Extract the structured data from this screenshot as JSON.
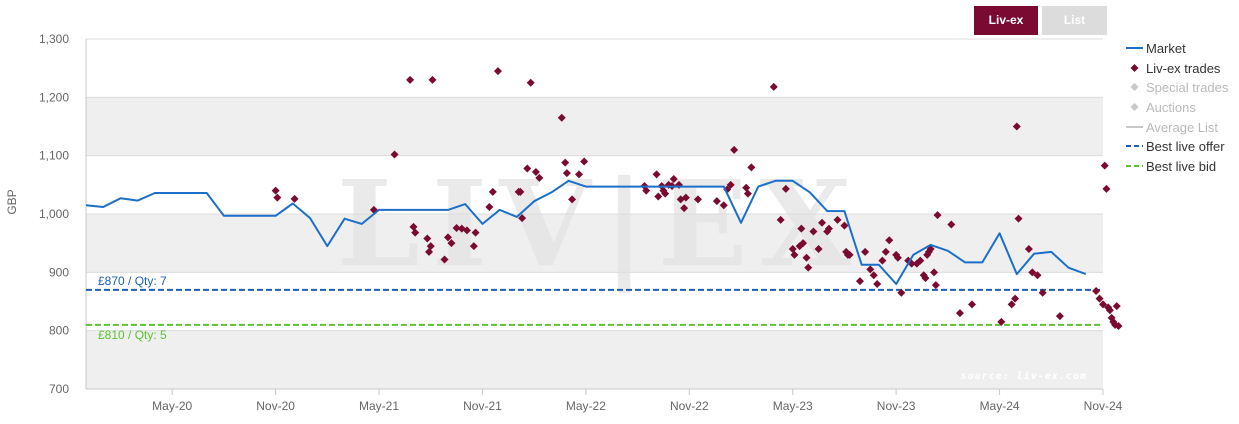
{
  "buttons": {
    "livex": "Liv-ex",
    "list": "List"
  },
  "legend": [
    {
      "name": "Market",
      "kind": "line",
      "color": "#1b6fc9",
      "muted": false
    },
    {
      "name": "Liv-ex trades",
      "kind": "diamond",
      "color": "#7b0a32",
      "muted": false
    },
    {
      "name": "Special trades",
      "kind": "diamond",
      "color": "#c8c8c8",
      "muted": true
    },
    {
      "name": "Auctions",
      "kind": "diamond",
      "color": "#c8c8c8",
      "muted": true
    },
    {
      "name": "Average List",
      "kind": "line",
      "color": "#c8c8c8",
      "muted": true
    },
    {
      "name": "Best live offer",
      "kind": "dash",
      "color": "#1a5fb4",
      "muted": false
    },
    {
      "name": "Best live bid",
      "kind": "dash",
      "color": "#5cc133",
      "muted": false
    }
  ],
  "chart_data": {
    "type": "line",
    "ylabel": "GBP",
    "ylim": [
      700,
      1300
    ],
    "yticks": [
      "1,300",
      "1,200",
      "1,100",
      "1,000",
      "900",
      "800",
      "700"
    ],
    "yticks_values": [
      1300,
      1200,
      1100,
      1000,
      900,
      800,
      700
    ],
    "xlim": [
      0,
      59
    ],
    "xticks": [
      {
        "label": "May-20",
        "x": 5
      },
      {
        "label": "Nov-20",
        "x": 11
      },
      {
        "label": "May-21",
        "x": 17
      },
      {
        "label": "Nov-21",
        "x": 23
      },
      {
        "label": "May-22",
        "x": 29
      },
      {
        "label": "Nov-22",
        "x": 35
      },
      {
        "label": "May-23",
        "x": 41
      },
      {
        "label": "Nov-23",
        "x": 47
      },
      {
        "label": "May-24",
        "x": 53
      },
      {
        "label": "Nov-24",
        "x": 59
      }
    ],
    "grid": true,
    "watermark": "LIV|EX",
    "source": "source: liv-ex.com",
    "best_offer": {
      "value": 870,
      "label": "£870 / Qty: 7",
      "color": "#1a5fb4"
    },
    "best_bid": {
      "value": 810,
      "label": "£810 / Qty: 5",
      "color": "#5cc133"
    },
    "market": {
      "name": "Market",
      "color": "#1b6fc9",
      "points": [
        [
          0,
          1015
        ],
        [
          1,
          1012
        ],
        [
          2,
          1027
        ],
        [
          3,
          1023
        ],
        [
          4,
          1036
        ],
        [
          5,
          1036
        ],
        [
          6,
          1036
        ],
        [
          7,
          1036
        ],
        [
          8,
          997
        ],
        [
          9,
          997
        ],
        [
          10,
          997
        ],
        [
          11,
          997
        ],
        [
          12,
          1018
        ],
        [
          13,
          993
        ],
        [
          14,
          945
        ],
        [
          15,
          992
        ],
        [
          16,
          983
        ],
        [
          17,
          1007
        ],
        [
          18,
          1007
        ],
        [
          19,
          1007
        ],
        [
          20,
          1007
        ],
        [
          21,
          1007
        ],
        [
          22,
          1017
        ],
        [
          23,
          983
        ],
        [
          24,
          1007
        ],
        [
          25,
          995
        ],
        [
          26,
          1022
        ],
        [
          27,
          1037
        ],
        [
          28,
          1057
        ],
        [
          29,
          1047
        ],
        [
          30,
          1047
        ],
        [
          31,
          1047
        ],
        [
          32,
          1047
        ],
        [
          33,
          1047
        ],
        [
          34,
          1047
        ],
        [
          35,
          1047
        ],
        [
          36,
          1047
        ],
        [
          37,
          1047
        ],
        [
          38,
          985
        ],
        [
          39,
          1047
        ],
        [
          40,
          1057
        ],
        [
          41,
          1057
        ],
        [
          42,
          1037
        ],
        [
          43,
          1005
        ],
        [
          44,
          1005
        ],
        [
          45,
          913
        ],
        [
          46,
          913
        ],
        [
          47,
          880
        ],
        [
          48,
          930
        ],
        [
          49,
          947
        ],
        [
          50,
          937
        ],
        [
          51,
          917
        ],
        [
          52,
          917
        ],
        [
          53,
          967
        ],
        [
          54,
          897
        ],
        [
          55,
          932
        ],
        [
          56,
          935
        ],
        [
          57,
          908
        ],
        [
          58,
          897
        ]
      ]
    },
    "trades": {
      "name": "Liv-ex trades",
      "color": "#7b0a32",
      "points": [
        [
          11,
          1040
        ],
        [
          11.1,
          1028
        ],
        [
          12.1,
          1026
        ],
        [
          16.7,
          1007
        ],
        [
          17.9,
          1102
        ],
        [
          18.8,
          1230
        ],
        [
          19,
          978
        ],
        [
          19.1,
          968
        ],
        [
          19.8,
          958
        ],
        [
          19.9,
          935
        ],
        [
          20.1,
          1230
        ],
        [
          20,
          945
        ],
        [
          20.8,
          922
        ],
        [
          21,
          960
        ],
        [
          21.2,
          950
        ],
        [
          21.5,
          976
        ],
        [
          21.8,
          975
        ],
        [
          22.1,
          972
        ],
        [
          22.5,
          945
        ],
        [
          22.6,
          968
        ],
        [
          23.4,
          1012
        ],
        [
          23.6,
          1038
        ],
        [
          23.9,
          1245
        ],
        [
          25.1,
          1038
        ],
        [
          25.2,
          1038
        ],
        [
          25.3,
          993
        ],
        [
          25.6,
          1078
        ],
        [
          25.8,
          1225
        ],
        [
          26.1,
          1072
        ],
        [
          26.3,
          1062
        ],
        [
          27.6,
          1165
        ],
        [
          27.8,
          1088
        ],
        [
          27.9,
          1070
        ],
        [
          28.2,
          1025
        ],
        [
          28.6,
          1068
        ],
        [
          28.9,
          1090
        ],
        [
          32.4,
          1048
        ],
        [
          32.5,
          1040
        ],
        [
          33.1,
          1068
        ],
        [
          33.2,
          1030
        ],
        [
          33.4,
          1048
        ],
        [
          33.5,
          1040
        ],
        [
          33.6,
          1035
        ],
        [
          33.8,
          1050
        ],
        [
          34,
          1048
        ],
        [
          34.1,
          1060
        ],
        [
          34.4,
          1050
        ],
        [
          34.5,
          1025
        ],
        [
          34.7,
          1010
        ],
        [
          34.8,
          1028
        ],
        [
          35.5,
          1025
        ],
        [
          36.6,
          1022
        ],
        [
          37,
          1015
        ],
        [
          37.2,
          1042
        ],
        [
          37.4,
          1050
        ],
        [
          37.6,
          1110
        ],
        [
          38.3,
          1045
        ],
        [
          38.4,
          1035
        ],
        [
          38.6,
          1080
        ],
        [
          39.9,
          1218
        ],
        [
          40.3,
          990
        ],
        [
          40.6,
          1043
        ],
        [
          41,
          940
        ],
        [
          41.1,
          930
        ],
        [
          41.5,
          975
        ],
        [
          41.4,
          945
        ],
        [
          41.6,
          950
        ],
        [
          41.8,
          925
        ],
        [
          41.9,
          908
        ],
        [
          42.2,
          970
        ],
        [
          42.5,
          940
        ],
        [
          42.7,
          985
        ],
        [
          43,
          970
        ],
        [
          43.1,
          975
        ],
        [
          43.6,
          990
        ],
        [
          44,
          980
        ],
        [
          44.1,
          935
        ],
        [
          44.2,
          930
        ],
        [
          44.3,
          930
        ],
        [
          44.9,
          885
        ],
        [
          45.2,
          935
        ],
        [
          45.5,
          905
        ],
        [
          45.7,
          895
        ],
        [
          45.9,
          880
        ],
        [
          46.2,
          920
        ],
        [
          46.4,
          935
        ],
        [
          46.6,
          955
        ],
        [
          47,
          930
        ],
        [
          47.1,
          925
        ],
        [
          47.3,
          865
        ],
        [
          47.7,
          920
        ],
        [
          47.9,
          915
        ],
        [
          48.2,
          915
        ],
        [
          48.4,
          920
        ],
        [
          48.6,
          895
        ],
        [
          48.7,
          890
        ],
        [
          48.8,
          930
        ],
        [
          48.9,
          935
        ],
        [
          49,
          940
        ],
        [
          49.2,
          900
        ],
        [
          49.3,
          878
        ],
        [
          49.4,
          998
        ],
        [
          50.2,
          982
        ],
        [
          50.7,
          830
        ],
        [
          51.4,
          845
        ],
        [
          53.1,
          815
        ],
        [
          53.7,
          845
        ],
        [
          53.9,
          855
        ],
        [
          54,
          1150
        ],
        [
          54.1,
          992
        ],
        [
          54.7,
          940
        ],
        [
          54.9,
          900
        ],
        [
          55.2,
          895
        ],
        [
          55.5,
          865
        ],
        [
          56.5,
          825
        ],
        [
          58.6,
          868
        ],
        [
          58.8,
          855
        ],
        [
          59,
          845
        ],
        [
          59.1,
          1083
        ],
        [
          59.2,
          1043
        ],
        [
          59.3,
          840
        ],
        [
          59.4,
          835
        ],
        [
          59.5,
          822
        ],
        [
          59.6,
          815
        ],
        [
          59.7,
          810
        ],
        [
          59.8,
          842
        ],
        [
          59.9,
          808
        ]
      ]
    }
  }
}
